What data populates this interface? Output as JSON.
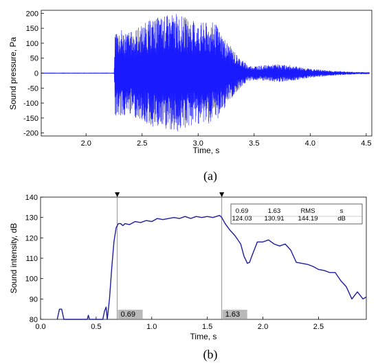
{
  "chart_data": [
    {
      "type": "line",
      "panel_label": "(a)",
      "xlabel": "Time, s",
      "ylabel": "Sound pressure, Pa",
      "xlim": [
        1.6,
        4.55
      ],
      "ylim": [
        -210,
        210
      ],
      "xticks": [
        "2.0",
        "2.5",
        "3.0",
        "3.5",
        "4.0",
        "4.5"
      ],
      "yticks": [
        "-200",
        "-150",
        "-100",
        "-50",
        "0",
        "50",
        "100",
        "150",
        "200"
      ],
      "line_color": "#1a1aff",
      "envelope": {
        "t": [
          1.6,
          2.25,
          2.26,
          2.4,
          2.6,
          2.8,
          3.0,
          3.15,
          3.25,
          3.35,
          3.45,
          3.55,
          3.7,
          3.85,
          4.0,
          4.2,
          4.4,
          4.55
        ],
        "amplitude": [
          0.5,
          0.5,
          150,
          140,
          185,
          200,
          170,
          170,
          110,
          60,
          25,
          25,
          30,
          25,
          15,
          8,
          4,
          3
        ]
      }
    },
    {
      "type": "line",
      "panel_label": "(b)",
      "xlabel": "Time, s",
      "ylabel": "Sound intensity, dB",
      "xlim": [
        0.0,
        2.93
      ],
      "ylim": [
        80,
        140
      ],
      "xticks": [
        "0.0",
        "0.5",
        "1.0",
        "1.5",
        "2.0",
        "2.5"
      ],
      "yticks": [
        "80",
        "90",
        "100",
        "110",
        "120",
        "130",
        "140"
      ],
      "line_color": "#1c1ca0",
      "series": [
        {
          "x": [
            0.15,
            0.17,
            0.19,
            0.21,
            0.42,
            0.43,
            0.44,
            0.56,
            0.575,
            0.59,
            0.6,
            0.62,
            0.64,
            0.66,
            0.68,
            0.7,
            0.72,
            0.74,
            0.76,
            0.8,
            0.85,
            0.9,
            0.95,
            1.0,
            1.05,
            1.1,
            1.15,
            1.2,
            1.25,
            1.3,
            1.35,
            1.4,
            1.45,
            1.5,
            1.55,
            1.58,
            1.61,
            1.63,
            1.66,
            1.7,
            1.75,
            1.8,
            1.83,
            1.86,
            1.88,
            1.9,
            1.95,
            2.0,
            2.05,
            2.1,
            2.15,
            2.2,
            2.25,
            2.3,
            2.35,
            2.4,
            2.45,
            2.5,
            2.55,
            2.6,
            2.65,
            2.7,
            2.75,
            2.8,
            2.85,
            2.9,
            2.93
          ],
          "y": [
            80,
            85,
            85,
            80,
            80,
            82,
            80,
            80,
            84,
            86,
            80,
            90,
            105,
            118,
            125,
            127,
            127,
            126,
            127,
            126.5,
            128,
            127.5,
            128.5,
            128,
            129.5,
            129,
            129.5,
            130,
            129.5,
            130.5,
            129.5,
            130.5,
            130,
            130.5,
            130,
            130.5,
            131,
            130,
            127,
            124,
            121,
            117,
            111,
            107.5,
            108,
            111,
            118,
            118,
            119,
            117,
            116,
            117,
            114,
            108,
            107.5,
            107,
            106,
            104.5,
            104,
            103,
            103,
            99,
            96,
            90,
            93.5,
            90,
            91
          ]
        }
      ],
      "markers": [
        {
          "x": 0.69,
          "label": "0.69"
        },
        {
          "x": 1.63,
          "label": "1.63"
        }
      ],
      "table": {
        "rows": [
          [
            "0.69",
            "1.63",
            "RMS",
            "s"
          ],
          [
            "124.03",
            "130.91",
            "144.19",
            "dB"
          ]
        ]
      }
    }
  ]
}
